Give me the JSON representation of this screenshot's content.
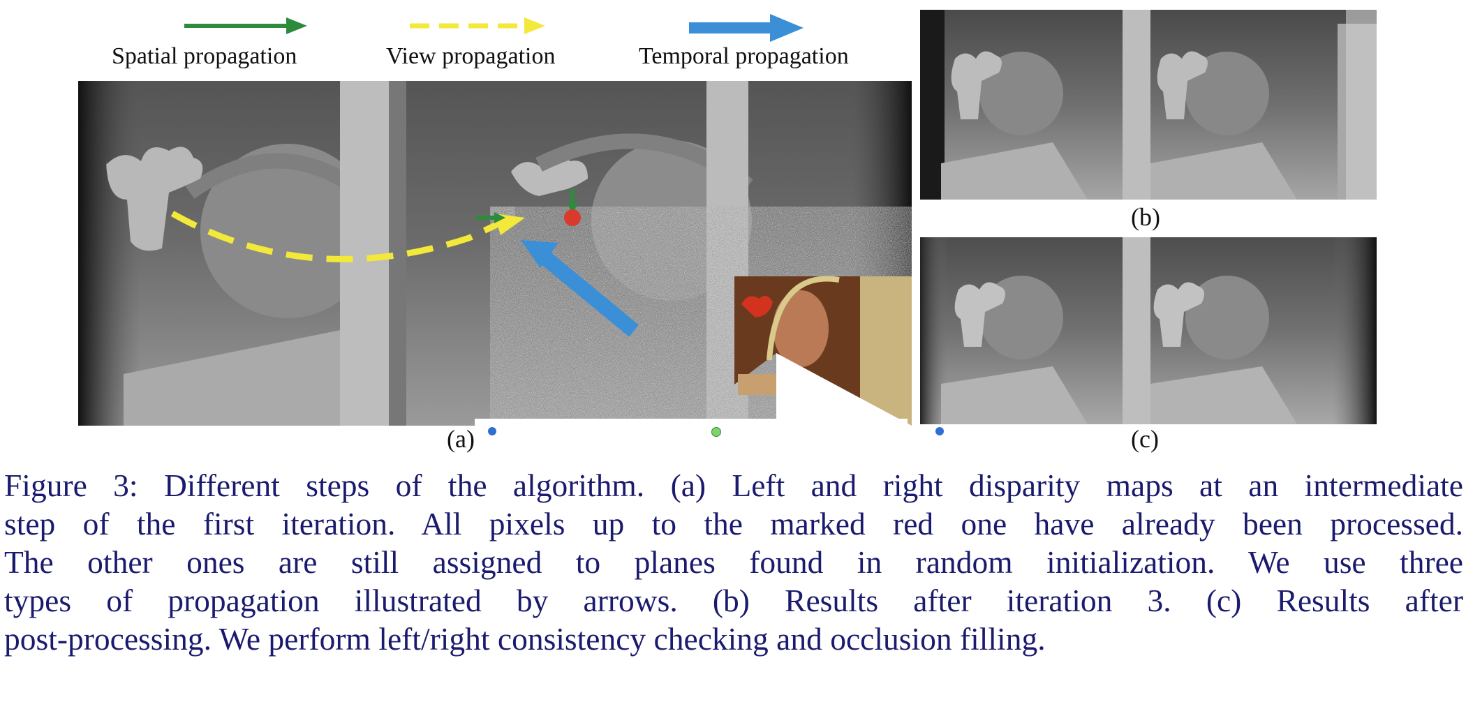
{
  "figure": {
    "legend": {
      "spatial": "Spatial propagation",
      "view": "View propagation",
      "temporal": "Temporal propagation",
      "colors": {
        "spatial": "#2e8b3e",
        "view": "#f2e93a",
        "temporal": "#3a8fd6",
        "marked_pixel": "#d83a2c"
      }
    },
    "panel_labels": {
      "a": "(a)",
      "b": "(b)",
      "c": "(c)"
    },
    "caption_lines": [
      "Figure 3: Different steps of the algorithm. (a) Left and right disparity maps at an intermediate",
      "step of the first iteration. All pixels up to the marked red one have already been processed.",
      "The other ones are still assigned to planes found in random initialization.  We use three",
      "types of propagation illustrated by arrows.  (b) Results after iteration 3.  (c) Results after",
      "post-processing. We perform left/right consistency checking and occlusion filling."
    ]
  }
}
